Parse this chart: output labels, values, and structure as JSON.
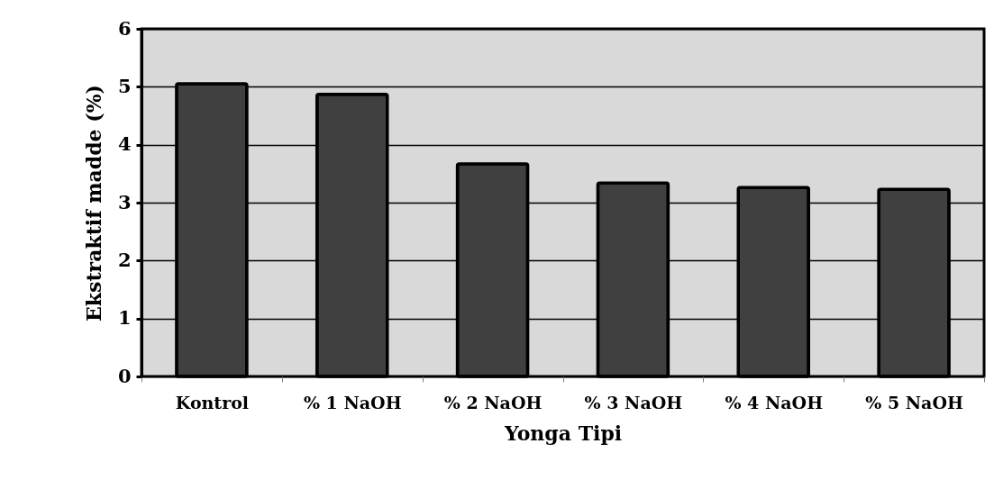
{
  "chart_data": {
    "type": "bar",
    "xlabel": "Yonga Tipi",
    "ylabel": "Ekstraktif madde (%)",
    "categories": [
      "Kontrol",
      "% 1 NaOH",
      "% 2 NaOH",
      "% 3 NaOH",
      "% 4 NaOH",
      "% 5 NaOH"
    ],
    "values": [
      5.05,
      4.87,
      3.67,
      3.34,
      3.26,
      3.23
    ],
    "color": "#404040",
    "ylim": [
      0,
      6
    ],
    "yticks": [
      0,
      1,
      2,
      3,
      4,
      5,
      6
    ],
    "grid": "y"
  }
}
